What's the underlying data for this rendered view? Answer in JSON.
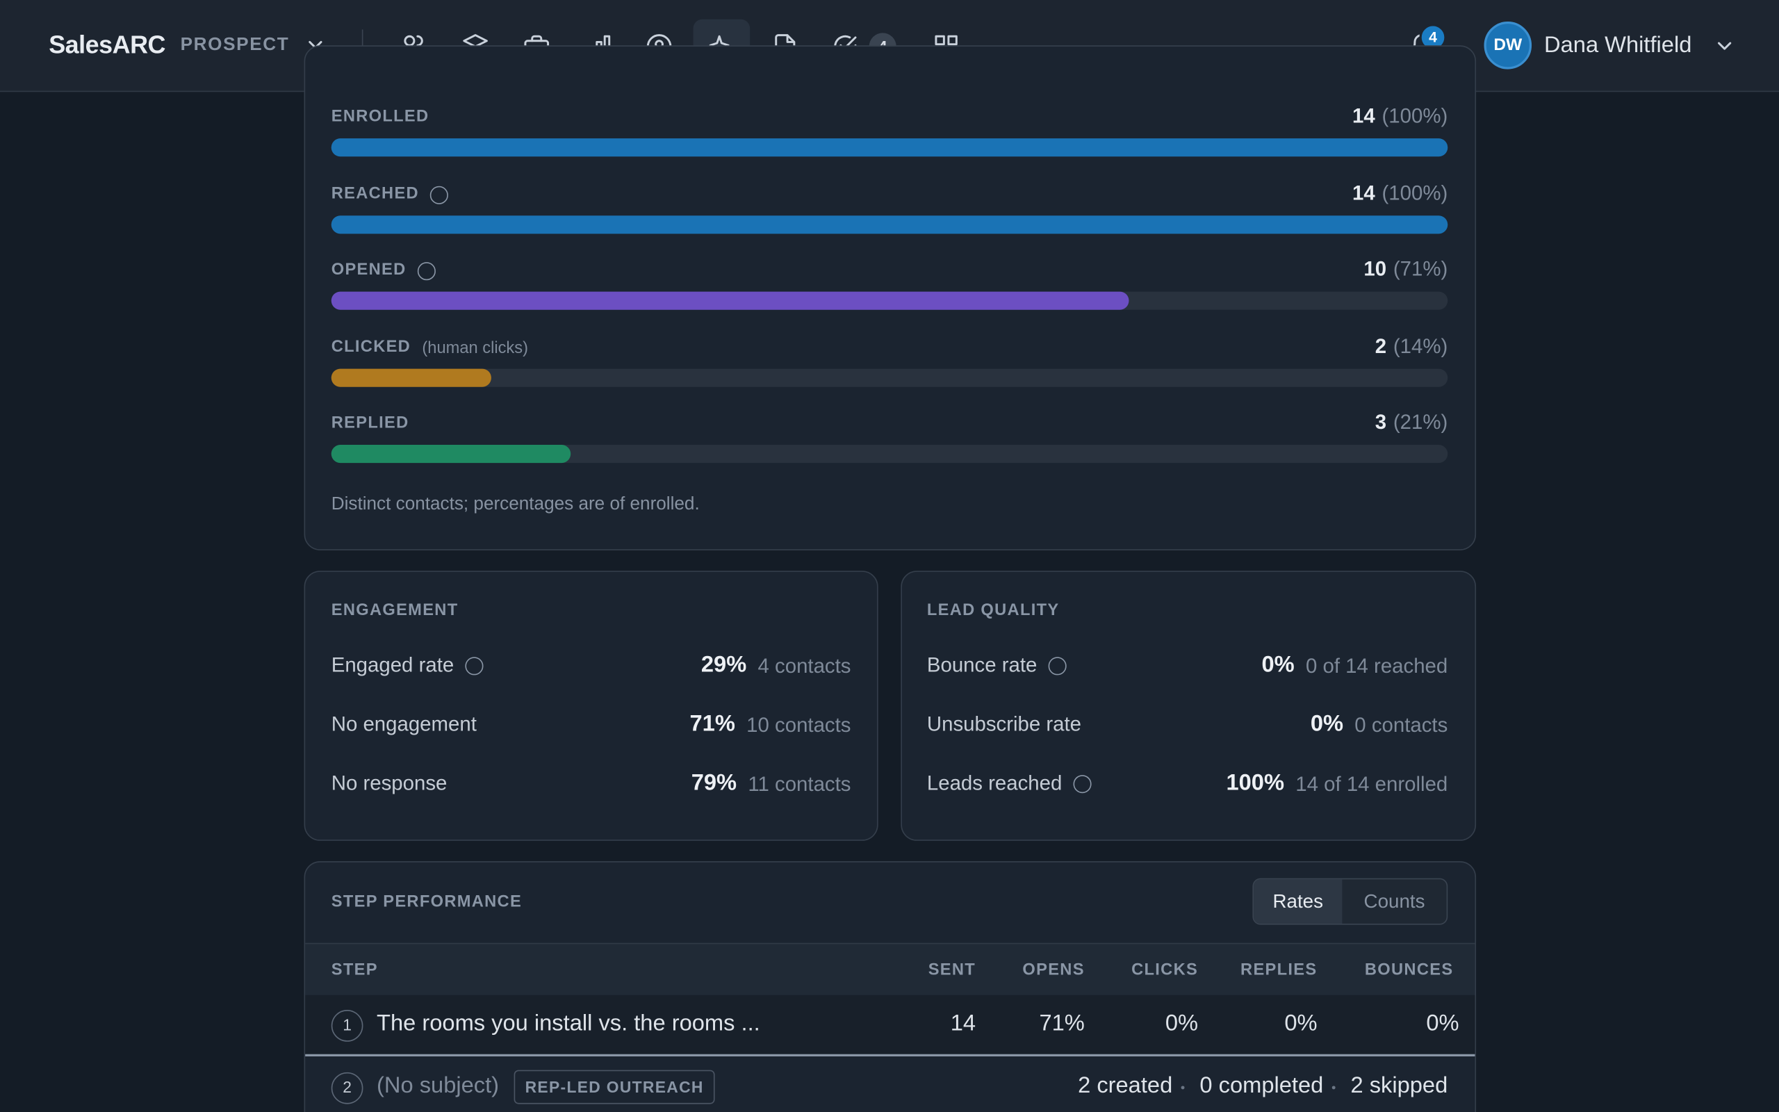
{
  "header": {
    "brand": "SalesARC",
    "product": "PROSPECT",
    "tasks_badge": "4",
    "notifications_badge": "4",
    "user_initials": "DW",
    "user_name": "Dana Whitfield"
  },
  "funnel": {
    "stages": [
      {
        "label": "ENROLLED",
        "info": false,
        "count": 14,
        "percent": "(100%)",
        "color": "#1a73b5"
      },
      {
        "label": "REACHED",
        "info": true,
        "count": 14,
        "percent": "(100%)",
        "color": "#1a73b5"
      },
      {
        "label": "OPENED",
        "info": true,
        "count": 10,
        "percent": "(71%)",
        "color": "#6c4fc2"
      },
      {
        "label": "CLICKED",
        "note": "(human clicks)",
        "info": false,
        "count": 2,
        "percent": "(14%)",
        "color": "#b07a1f"
      },
      {
        "label": "REPLIED",
        "info": false,
        "count": 3,
        "percent": "(21%)",
        "color": "#1f8a62"
      }
    ],
    "footnote": "Distinct contacts; percentages are of enrolled."
  },
  "engagement": {
    "title": "ENGAGEMENT",
    "rows": [
      {
        "label": "Engaged rate",
        "info": true,
        "value": "29%",
        "detail": "4 contacts"
      },
      {
        "label": "No engagement",
        "info": false,
        "value": "71%",
        "detail": "10 contacts"
      },
      {
        "label": "No response",
        "info": false,
        "value": "79%",
        "detail": "11 contacts"
      }
    ]
  },
  "lead_quality": {
    "title": "LEAD QUALITY",
    "rows": [
      {
        "label": "Bounce rate",
        "info": true,
        "value": "0%",
        "detail": "0 of 14 reached"
      },
      {
        "label": "Unsubscribe rate",
        "info": false,
        "value": "0%",
        "detail": "0 contacts"
      },
      {
        "label": "Leads reached",
        "info": true,
        "value": "100%",
        "detail": "14 of 14 enrolled"
      }
    ]
  },
  "step_performance": {
    "title": "STEP PERFORMANCE",
    "toggle": [
      "Rates",
      "Counts"
    ],
    "columns": [
      "STEP",
      "SENT",
      "OPENS",
      "CLICKS",
      "REPLIES",
      "BOUNCES"
    ],
    "rows": [
      {
        "number": "1",
        "subject": "The rooms you install vs. the rooms ...",
        "cells": [
          "14",
          "71%",
          "0%",
          "0%",
          "0%"
        ]
      }
    ],
    "manual_step": {
      "number": "2",
      "subject": "(No subject)",
      "tag": "REP-LED OUTREACH",
      "stats": [
        "2 created",
        "0 completed",
        "2 skipped"
      ]
    }
  }
}
